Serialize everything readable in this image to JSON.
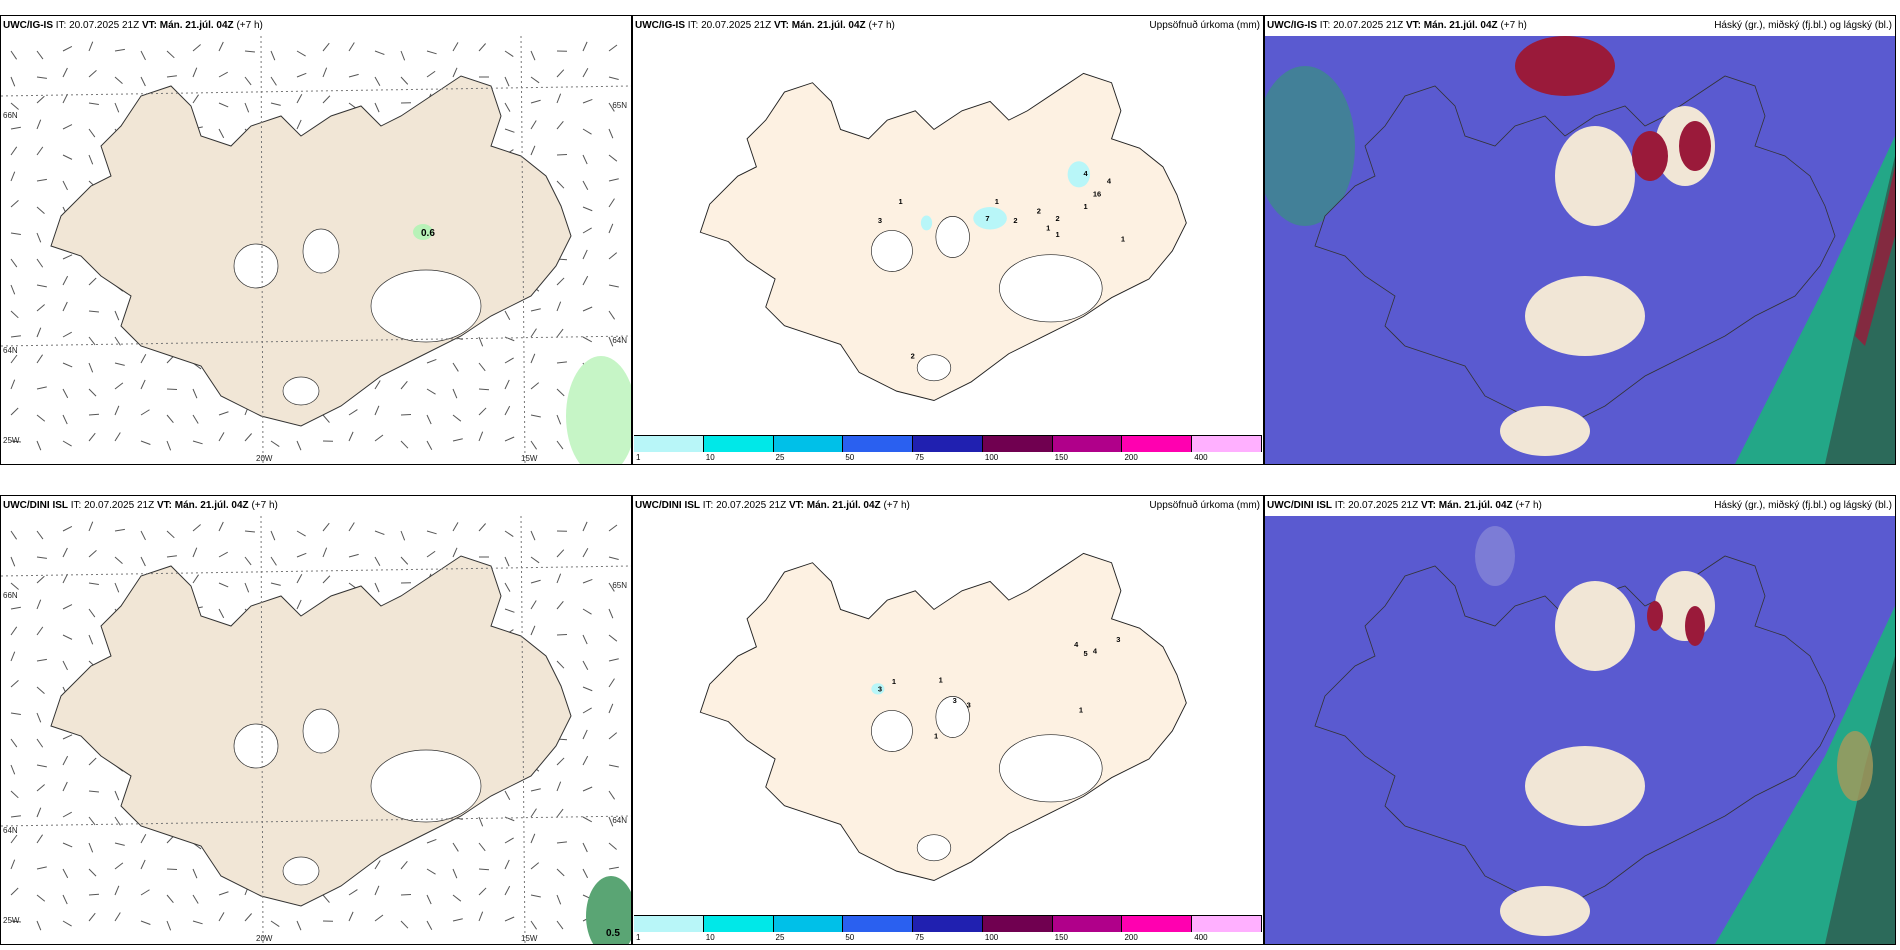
{
  "header_common": {
    "it": "IT: 20.07.2025 21Z",
    "vt": "VT: Mán. 21.júl. 04Z",
    "lead": "(+7 h)"
  },
  "rows": [
    {
      "model": "UWC/IG-IS",
      "wind_value": "0.6",
      "precip_labels": [
        "3",
        "1",
        "7",
        "1",
        "2",
        "2",
        "1",
        "2",
        "1",
        "4",
        "4",
        "16",
        "1",
        "1",
        "2"
      ]
    },
    {
      "model": "UWC/DINI ISL",
      "wind_value": "0.5",
      "precip_labels": [
        "3",
        "1",
        "1",
        "3",
        "3",
        "1",
        "4",
        "5",
        "4",
        "3",
        "1"
      ]
    }
  ],
  "precip_title": "Uppsöfnuð úrkoma (mm)",
  "cloud_title": "Háský (gr.), miðský (fj.bl.) og lágský (bl.)",
  "colorbar": {
    "labels": [
      "1",
      "10",
      "25",
      "50",
      "75",
      "100",
      "150",
      "200",
      "400"
    ],
    "colors": [
      "#b8f6f8",
      "#00e8e8",
      "#00c0e8",
      "#2a60f0",
      "#2020b0",
      "#700050",
      "#b0008a",
      "#ff00b0",
      "#ffb0ff"
    ]
  },
  "axis_labels": {
    "lat_top": "66N",
    "lat_bot": "64N",
    "lon_left": "25W",
    "lon_mid": "20W",
    "lon_right": "15W",
    "lat_right_top": "65N",
    "lat_right_bot": "64N"
  },
  "colors": {
    "land_wind": "#f1e6d6",
    "land_precip": "#fdf1e2",
    "cloud_high_red": "#9a1a3a",
    "cloud_mid_green": "#1ab57a",
    "cloud_low_blue": "#5a5ad0"
  }
}
